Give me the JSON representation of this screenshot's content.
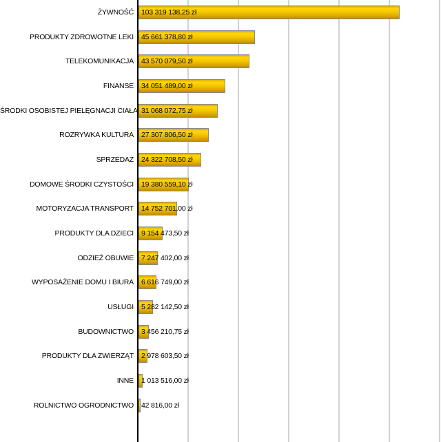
{
  "chart_data": {
    "type": "bar",
    "orientation": "horizontal",
    "title": "",
    "xlabel": "",
    "ylabel": "",
    "grid": true,
    "legend": false,
    "xlim": [
      0,
      120000000
    ],
    "gridline_step": 20000000,
    "currency_suffix": "zł",
    "categories": [
      "ŻYWNOŚĆ",
      "PRODUKTY ZDROWOTNE LEKI",
      "TELEKOMUNIKACJA",
      "FINANSE",
      "ŚRODKI OSOBISTEJ PIELĘGNACJI CIAŁA",
      "ROZRYWKA KULTURA",
      "SPRZEDAŻ",
      "DOMOWE ŚRODKI CZYSTOŚCI",
      "MOTORYZACJA TRANSPORT",
      "PRODUKTY DLA DZIECI",
      "ODZIEŻ OBUWIE",
      "WYPOSAŻENIE DOMU I BIURA",
      "USŁUGI",
      "BUDOWNICTWO",
      "PRODUKTY DLA ZWIERZĄT",
      "INNE",
      "ROLNICTWO OGRODNICTWO"
    ],
    "values": [
      103319138.25,
      45661378.8,
      43570079.5,
      34051489.0,
      31068072.75,
      27307806.5,
      24322708.5,
      19380559.1,
      14752701.0,
      9154473.5,
      7247402.0,
      6616749.0,
      5282142.5,
      3456210.75,
      2978603.5,
      1013516.0,
      42816.0
    ],
    "value_labels": [
      "103 319 138,25 zł",
      "45 661 378,80 zł",
      "43 570 079,50 zł",
      "34 051 489,00 zł",
      "31 068 072,75 zł",
      "27 307 806,50 zł",
      "24 322 708,50 zł",
      "19 380 559,10 zł",
      "14 752 701,00 zł",
      "9 154 473,50 zł",
      "7 247 402,00 zł",
      "6 616 749,00 zł",
      "5 282 142,50 zł",
      "3 456 210,75 zł",
      "2 978 603,50 zł",
      "1 013 516,00 zł",
      "42 816,00 zł"
    ],
    "colors": {
      "bar_top": "#ffd60a",
      "bar_bottom": "#c08d00",
      "bar_border": "#8a8a8a",
      "gridline": "#d2d2d2",
      "axis": "#000000",
      "text": "#000000",
      "background": "#ffffff"
    }
  }
}
